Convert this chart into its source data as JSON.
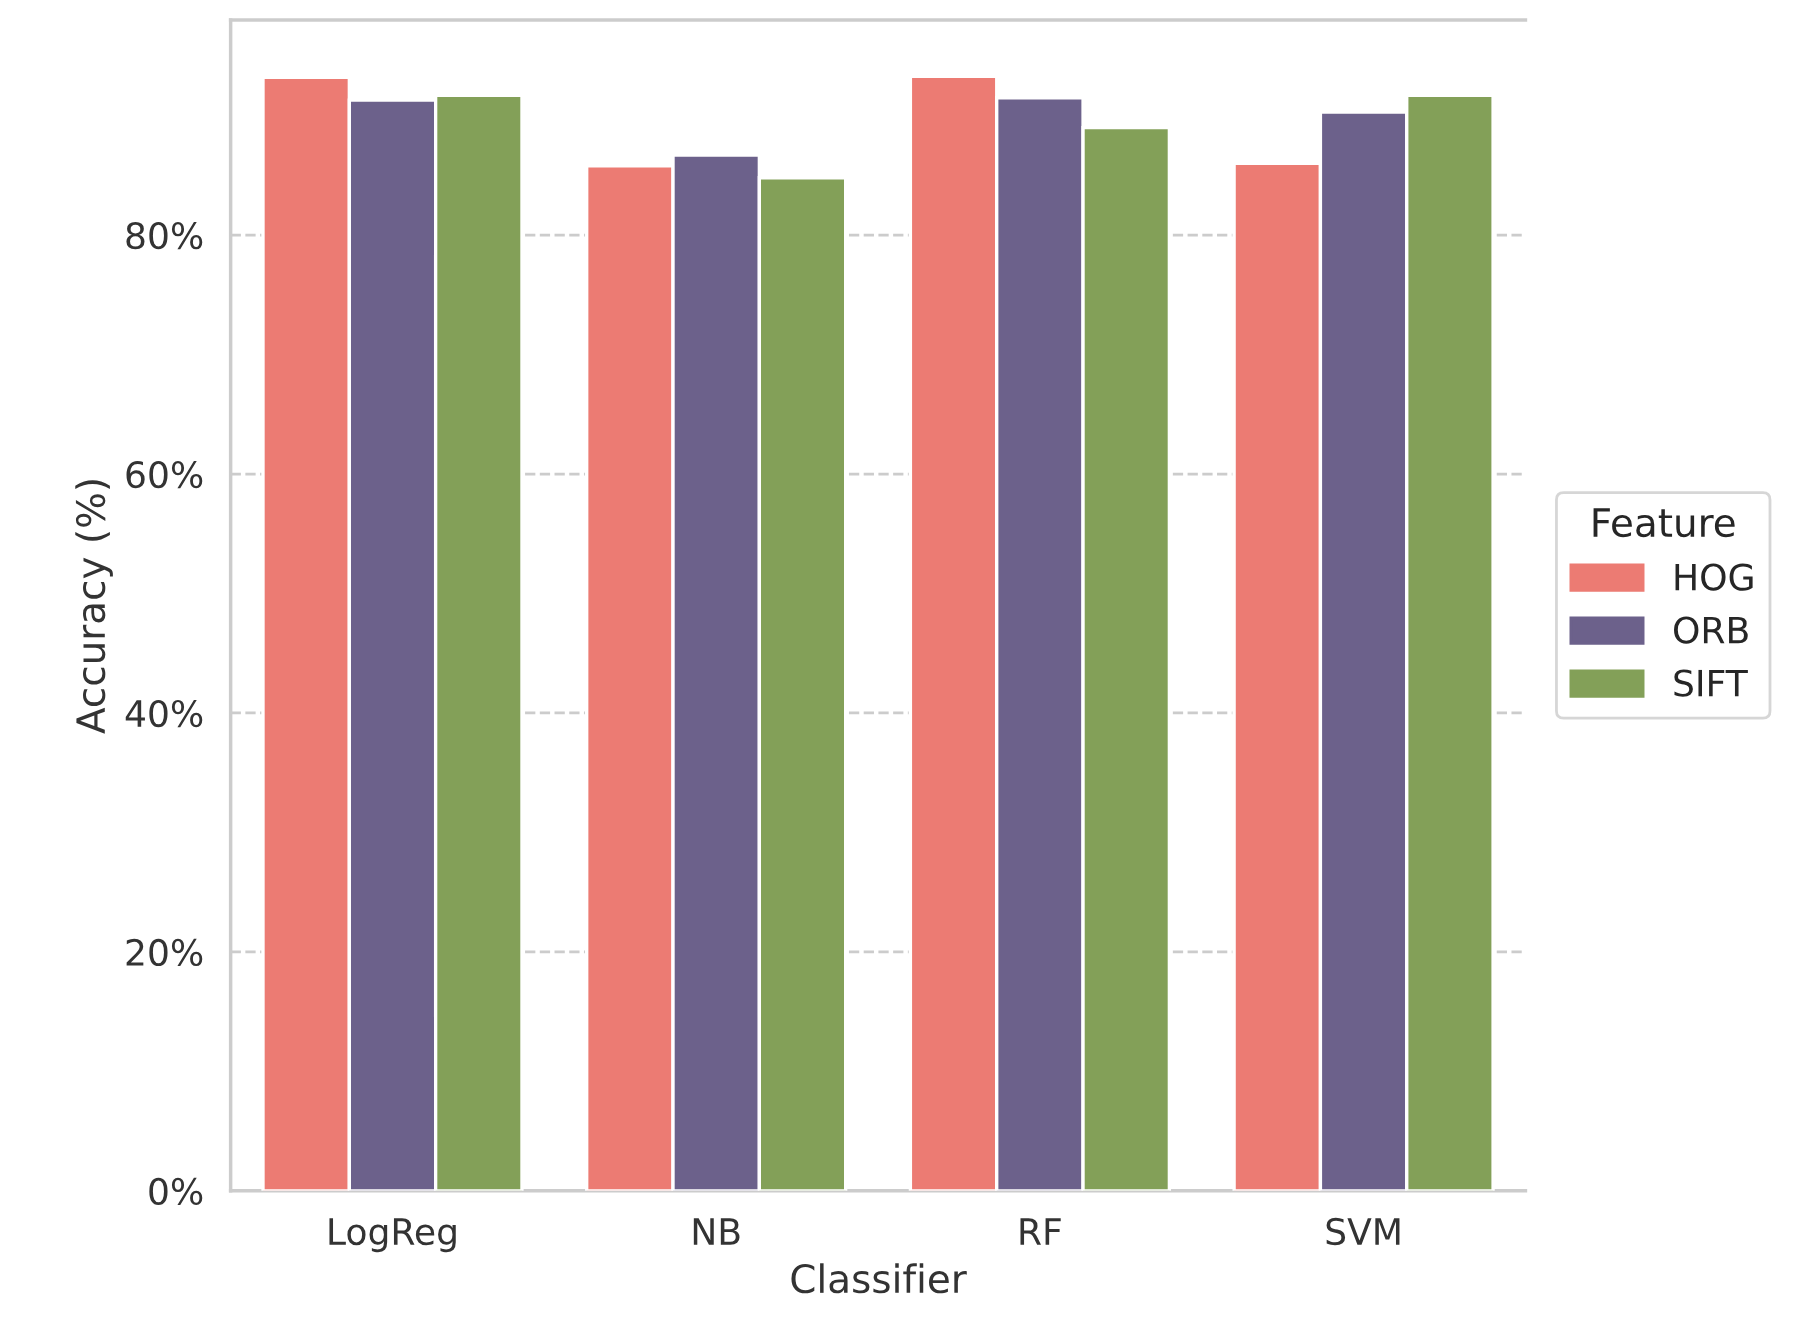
{
  "chart_data": {
    "type": "bar",
    "xlabel": "Classifier",
    "ylabel": "Accuracy (%)",
    "legend_title": "Feature",
    "categories": [
      "LogReg",
      "NB",
      "RF",
      "SVM"
    ],
    "series": [
      {
        "name": "HOG",
        "color": "#ec7b73",
        "values": [
          93.2,
          85.8,
          93.3,
          86.0
        ]
      },
      {
        "name": "ORB",
        "color": "#6c618b",
        "values": [
          91.3,
          86.7,
          91.5,
          90.3
        ]
      },
      {
        "name": "SIFT",
        "color": "#83a058",
        "values": [
          91.7,
          84.8,
          89.0,
          91.7
        ]
      }
    ],
    "ylim": [
      0,
      98
    ],
    "yticks": [
      {
        "value": 0,
        "label": "0%"
      },
      {
        "value": 20,
        "label": "20%"
      },
      {
        "value": 40,
        "label": "40%"
      },
      {
        "value": 60,
        "label": "60%"
      },
      {
        "value": 80,
        "label": "80%"
      }
    ],
    "grid": "y",
    "legend": "right"
  }
}
